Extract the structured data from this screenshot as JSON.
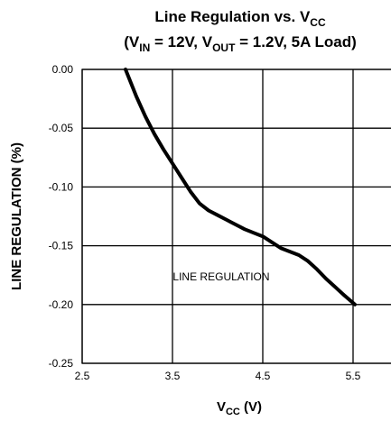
{
  "chart_data": {
    "type": "line",
    "title": {
      "line1_prefix": "Line Regulation vs. V",
      "line1_sub": "CC",
      "line2_open": "(V",
      "line2_sub1": "IN",
      "line2_mid": " = 12V, V",
      "line2_sub2": "OUT",
      "line2_close": " = 1.2V, 5A Load)"
    },
    "xlabel": {
      "main": "V",
      "sub": "CC",
      "unit": " (V)"
    },
    "ylabel": "LINE REGULATION (%)",
    "xlim": [
      2.5,
      6.0
    ],
    "ylim": [
      -0.25,
      0.0
    ],
    "x_ticks": [
      "2.5",
      "3.5",
      "4.5",
      "5.5"
    ],
    "y_ticks": [
      "0.00",
      "-0.05",
      "-0.10",
      "-0.15",
      "-0.20",
      "-0.25"
    ],
    "grid": true,
    "annotation": "LINE REGULATION",
    "series": [
      {
        "x": [
          2.98,
          3.1,
          3.2,
          3.3,
          3.4,
          3.5,
          3.6,
          3.7,
          3.8,
          3.9,
          4.0,
          4.1,
          4.2,
          4.3,
          4.4,
          4.5,
          4.6,
          4.7,
          4.8,
          4.9,
          5.0,
          5.1,
          5.2,
          5.3,
          5.4,
          5.52
        ],
        "y": [
          0.0,
          -0.023,
          -0.04,
          -0.055,
          -0.068,
          -0.08,
          -0.092,
          -0.104,
          -0.114,
          -0.12,
          -0.124,
          -0.128,
          -0.132,
          -0.136,
          -0.139,
          -0.142,
          -0.147,
          -0.152,
          -0.155,
          -0.158,
          -0.163,
          -0.17,
          -0.178,
          -0.185,
          -0.192,
          -0.2
        ]
      }
    ]
  }
}
